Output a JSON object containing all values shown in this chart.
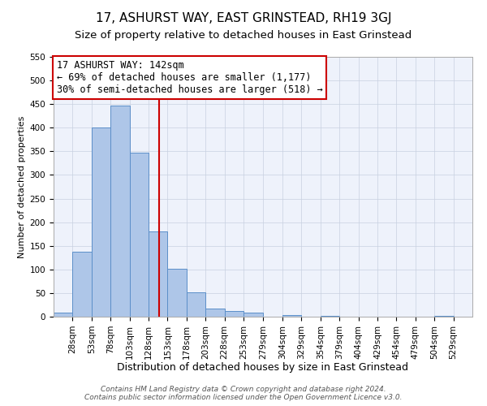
{
  "title": "17, ASHURST WAY, EAST GRINSTEAD, RH19 3GJ",
  "subtitle": "Size of property relative to detached houses in East Grinstead",
  "xlabel": "Distribution of detached houses by size in East Grinstead",
  "ylabel": "Number of detached properties",
  "bar_left_edges": [
    3,
    28,
    53,
    78,
    103,
    128,
    153,
    178,
    203,
    228,
    253,
    279,
    304,
    329,
    354,
    379,
    404,
    429,
    454,
    479,
    504
  ],
  "bar_heights": [
    8,
    137,
    400,
    447,
    347,
    180,
    102,
    52,
    18,
    12,
    8,
    0,
    3,
    0,
    2,
    0,
    0,
    0,
    0,
    0,
    2
  ],
  "bin_width": 25,
  "bar_color": "#aec6e8",
  "bar_edge_color": "#5b8fc9",
  "vline_color": "#cc0000",
  "vline_x": 142,
  "annotation_line1": "17 ASHURST WAY: 142sqm",
  "annotation_line2": "← 69% of detached houses are smaller (1,177)",
  "annotation_line3": "30% of semi-detached houses are larger (518) →",
  "annotation_box_color": "#ffffff",
  "annotation_box_edge_color": "#cc0000",
  "xlim": [
    3,
    554
  ],
  "ylim": [
    0,
    550
  ],
  "yticks": [
    0,
    50,
    100,
    150,
    200,
    250,
    300,
    350,
    400,
    450,
    500,
    550
  ],
  "xtick_labels": [
    "28sqm",
    "53sqm",
    "78sqm",
    "103sqm",
    "128sqm",
    "153sqm",
    "178sqm",
    "203sqm",
    "228sqm",
    "253sqm",
    "279sqm",
    "304sqm",
    "329sqm",
    "354sqm",
    "379sqm",
    "404sqm",
    "429sqm",
    "454sqm",
    "479sqm",
    "504sqm",
    "529sqm"
  ],
  "xtick_positions": [
    28,
    53,
    78,
    103,
    128,
    153,
    178,
    203,
    228,
    253,
    279,
    304,
    329,
    354,
    379,
    404,
    429,
    454,
    479,
    504,
    529
  ],
  "grid_color": "#c8d0e0",
  "background_color": "#eef2fb",
  "footer_line1": "Contains HM Land Registry data © Crown copyright and database right 2024.",
  "footer_line2": "Contains public sector information licensed under the Open Government Licence v3.0.",
  "title_fontsize": 11,
  "subtitle_fontsize": 9.5,
  "xlabel_fontsize": 9,
  "ylabel_fontsize": 8,
  "tick_fontsize": 7.5,
  "annotation_fontsize": 8.5,
  "footer_fontsize": 6.5
}
